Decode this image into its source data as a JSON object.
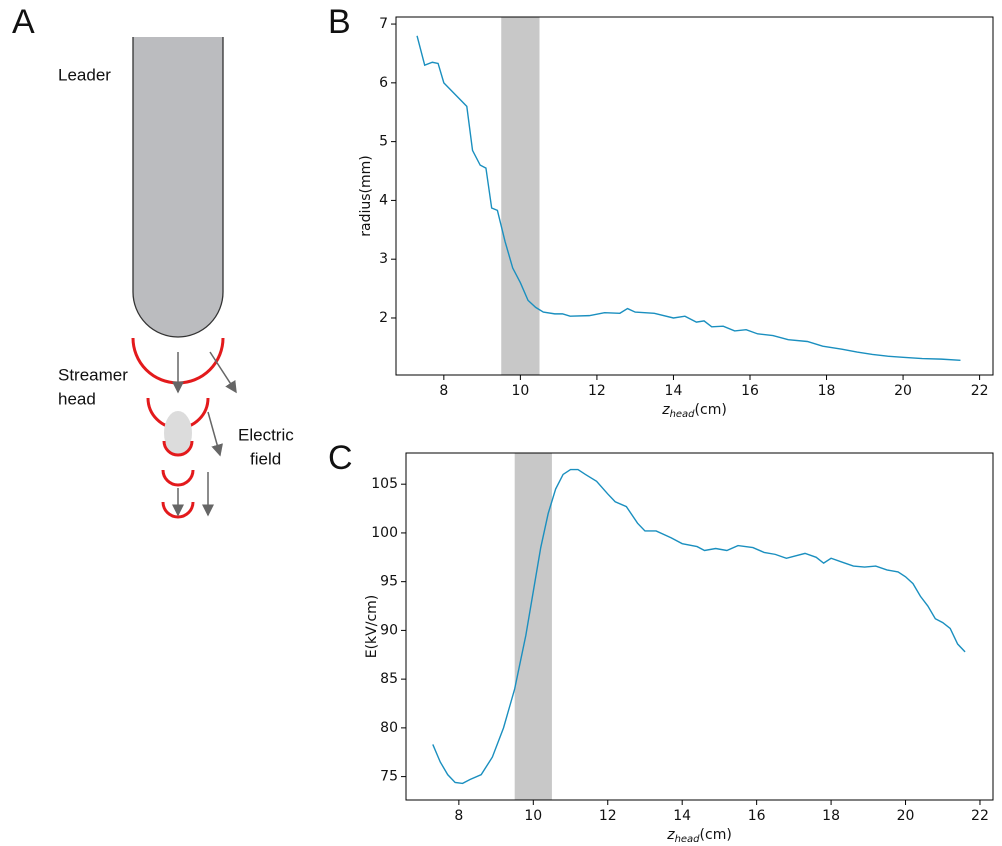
{
  "panels": [
    "A",
    "B",
    "C"
  ],
  "diagram": {
    "leader": "Leader",
    "streamer": [
      "Streamer",
      "head"
    ],
    "field": [
      "Electric",
      "field"
    ]
  },
  "chart_data": [
    {
      "type": "line",
      "ylabel": "radius(mm)",
      "xlabel": {
        "var": "z",
        "sub": "head",
        "unit": "(cm)"
      },
      "xlim": [
        6.75,
        22.35
      ],
      "ylim": [
        1.03,
        7.12
      ],
      "xticks": [
        8,
        10,
        12,
        14,
        16,
        18,
        20,
        22
      ],
      "yticks": [
        2,
        3,
        4,
        5,
        6,
        7
      ],
      "span": [
        9.5,
        10.5
      ],
      "span_color": "#c8c8c8",
      "series": [
        {
          "color": "#1a8fbf",
          "x": [
            7.3,
            7.5,
            7.7,
            7.85,
            8.0,
            8.3,
            8.6,
            8.75,
            8.95,
            9.1,
            9.25,
            9.4,
            9.6,
            9.8,
            10.0,
            10.2,
            10.4,
            10.6,
            10.9,
            11.1,
            11.3,
            11.8,
            12.2,
            12.6,
            12.8,
            13.0,
            13.5,
            14.0,
            14.3,
            14.6,
            14.8,
            15.0,
            15.3,
            15.6,
            15.9,
            16.2,
            16.6,
            17.0,
            17.5,
            17.9,
            18.4,
            18.8,
            19.2,
            19.6,
            20.0,
            20.5,
            21.0,
            21.5
          ],
          "values": [
            6.8,
            6.3,
            6.35,
            6.33,
            6.0,
            5.8,
            5.6,
            4.85,
            4.6,
            4.55,
            3.87,
            3.83,
            3.3,
            2.85,
            2.6,
            2.3,
            2.18,
            2.1,
            2.07,
            2.07,
            2.03,
            2.04,
            2.09,
            2.08,
            2.16,
            2.1,
            2.08,
            2.0,
            2.03,
            1.93,
            1.95,
            1.85,
            1.86,
            1.78,
            1.8,
            1.73,
            1.7,
            1.63,
            1.6,
            1.52,
            1.47,
            1.42,
            1.38,
            1.35,
            1.33,
            1.31,
            1.3,
            1.28
          ]
        }
      ]
    },
    {
      "type": "line",
      "ylabel": "E(kV/cm)",
      "xlabel": {
        "var": "z",
        "sub": "head",
        "unit": "(cm)"
      },
      "xlim": [
        6.58,
        22.35
      ],
      "ylim": [
        72.6,
        108.2
      ],
      "xticks": [
        8,
        10,
        12,
        14,
        16,
        18,
        20,
        22
      ],
      "yticks": [
        75,
        80,
        85,
        90,
        95,
        100,
        105
      ],
      "span": [
        9.5,
        10.5
      ],
      "span_color": "#c8c8c8",
      "series": [
        {
          "color": "#1a8fbf",
          "x": [
            7.3,
            7.5,
            7.7,
            7.9,
            8.1,
            8.3,
            8.6,
            8.9,
            9.2,
            9.5,
            9.8,
            10.0,
            10.2,
            10.4,
            10.6,
            10.8,
            11.0,
            11.2,
            11.4,
            11.7,
            12.0,
            12.2,
            12.5,
            12.8,
            13.0,
            13.3,
            13.7,
            14.0,
            14.4,
            14.6,
            14.9,
            15.2,
            15.5,
            15.9,
            16.2,
            16.5,
            16.8,
            17.0,
            17.3,
            17.6,
            17.8,
            18.0,
            18.3,
            18.6,
            18.9,
            19.2,
            19.5,
            19.8,
            20.0,
            20.2,
            20.4,
            20.6,
            20.8,
            21.0,
            21.2,
            21.4,
            21.6
          ],
          "values": [
            78.3,
            76.5,
            75.2,
            74.4,
            74.3,
            74.7,
            75.2,
            77.0,
            80.0,
            84.0,
            89.5,
            94.0,
            98.5,
            102.0,
            104.5,
            106.0,
            106.5,
            106.5,
            106.0,
            105.3,
            104.0,
            103.2,
            102.7,
            101.0,
            100.2,
            100.2,
            99.5,
            98.9,
            98.6,
            98.2,
            98.4,
            98.2,
            98.7,
            98.5,
            98.0,
            97.8,
            97.4,
            97.6,
            97.9,
            97.5,
            96.9,
            97.4,
            97.0,
            96.6,
            96.5,
            96.6,
            96.2,
            96.0,
            95.5,
            94.8,
            93.5,
            92.5,
            91.2,
            90.8,
            90.2,
            88.6,
            87.8
          ]
        }
      ]
    }
  ]
}
